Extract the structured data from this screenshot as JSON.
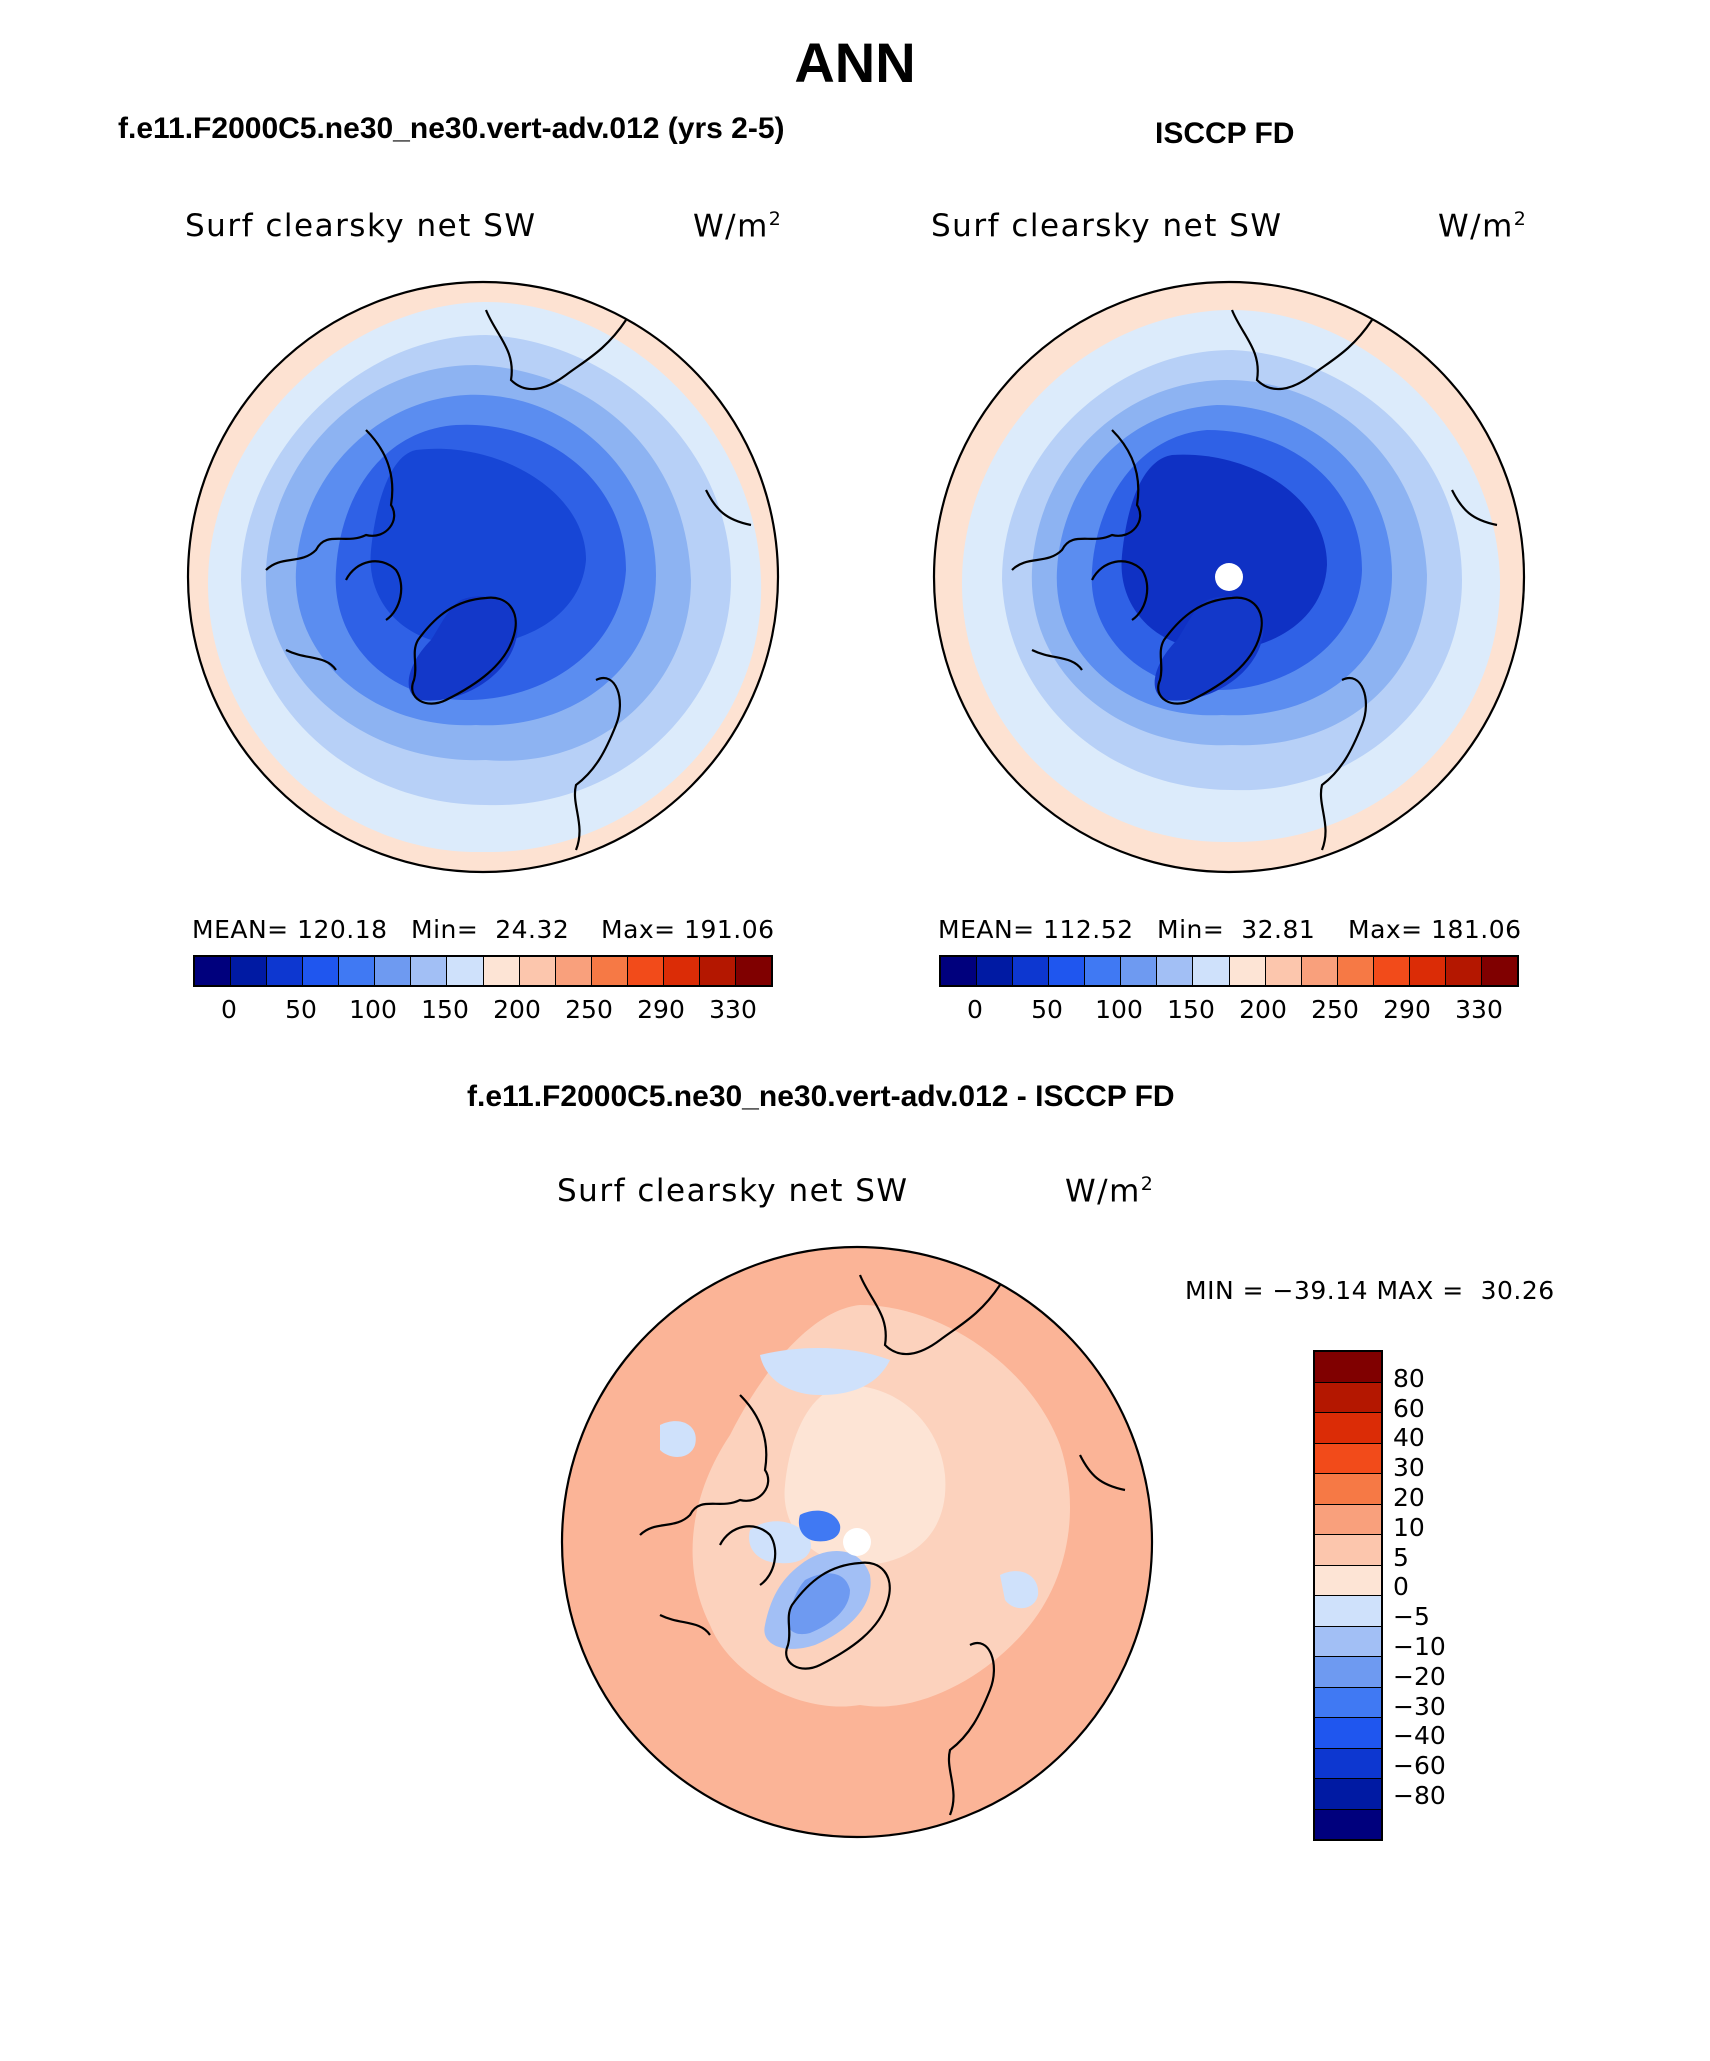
{
  "title": "ANN",
  "panels": [
    {
      "case_title": "f.e11.F2000C5.ne30_ne30.vert-adv.012 (yrs 2-5)",
      "label": "Surf clearsky net SW",
      "units_base": "W/m",
      "units_exp": "2",
      "mean_label": "MEAN=",
      "mean": "120.18",
      "min_label": "Min=",
      "min": "24.32",
      "max_label": "Max=",
      "max": "191.06",
      "field_fill": {
        "outer": "#fde2d2",
        "ring1": "#dcebfb",
        "ring2": "#b7d0f7",
        "ring3": "#8db3f2",
        "ring4": "#5b8df0",
        "ring5": "#2f61e6",
        "center": "#1746d6",
        "greenland": "#1338c9"
      }
    },
    {
      "case_title": "ISCCP FD",
      "label": "Surf clearsky net SW",
      "units_base": "W/m",
      "units_exp": "2",
      "mean_label": "MEAN=",
      "mean": "112.52",
      "min_label": "Min=",
      "min": "32.81",
      "max_label": "Max=",
      "max": "181.06",
      "field_fill": {
        "outer": "#fde2d2",
        "ring1": "#dcebfb",
        "ring2": "#b7d0f7",
        "ring3": "#8db3f2",
        "ring4": "#5b8df0",
        "ring5": "#2f61e6",
        "center": "#0f31c4",
        "greenland": "#1338c9"
      }
    }
  ],
  "abs_colorbar": {
    "colors": [
      "#00007d",
      "#001aa3",
      "#0d37d0",
      "#1f56ef",
      "#4079f3",
      "#6e9af1",
      "#a2bff5",
      "#cfe1fb",
      "#fde4d5",
      "#fcc6ad",
      "#f9a07c",
      "#f67945",
      "#f24b1a",
      "#db2c06",
      "#b41700",
      "#800000"
    ],
    "tick_labels": [
      "0",
      "50",
      "100",
      "150",
      "200",
      "250",
      "290",
      "330"
    ]
  },
  "diff_panel": {
    "case_title": "f.e11.F2000C5.ne30_ne30.vert-adv.012 - ISCCP FD",
    "label": "Surf clearsky net SW",
    "units_base": "W/m",
    "units_exp": "2",
    "min_label": "MIN =",
    "min": "−39.14",
    "max_label": "MAX =",
    "max": "30.26",
    "colorbar": {
      "colors_top_to_bottom": [
        "#800000",
        "#b41700",
        "#db2c06",
        "#f24b1a",
        "#f67945",
        "#f9a07c",
        "#fcc6ad",
        "#fde4d5",
        "#cfe1fb",
        "#a2bff5",
        "#6e9af1",
        "#4079f3",
        "#1f56ef",
        "#0d37d0",
        "#001aa3",
        "#00007d"
      ],
      "tick_labels": [
        "80",
        "60",
        "40",
        "30",
        "20",
        "10",
        "5",
        "0",
        "−5",
        "−10",
        "−20",
        "−30",
        "−40",
        "−60",
        "−80"
      ]
    }
  }
}
